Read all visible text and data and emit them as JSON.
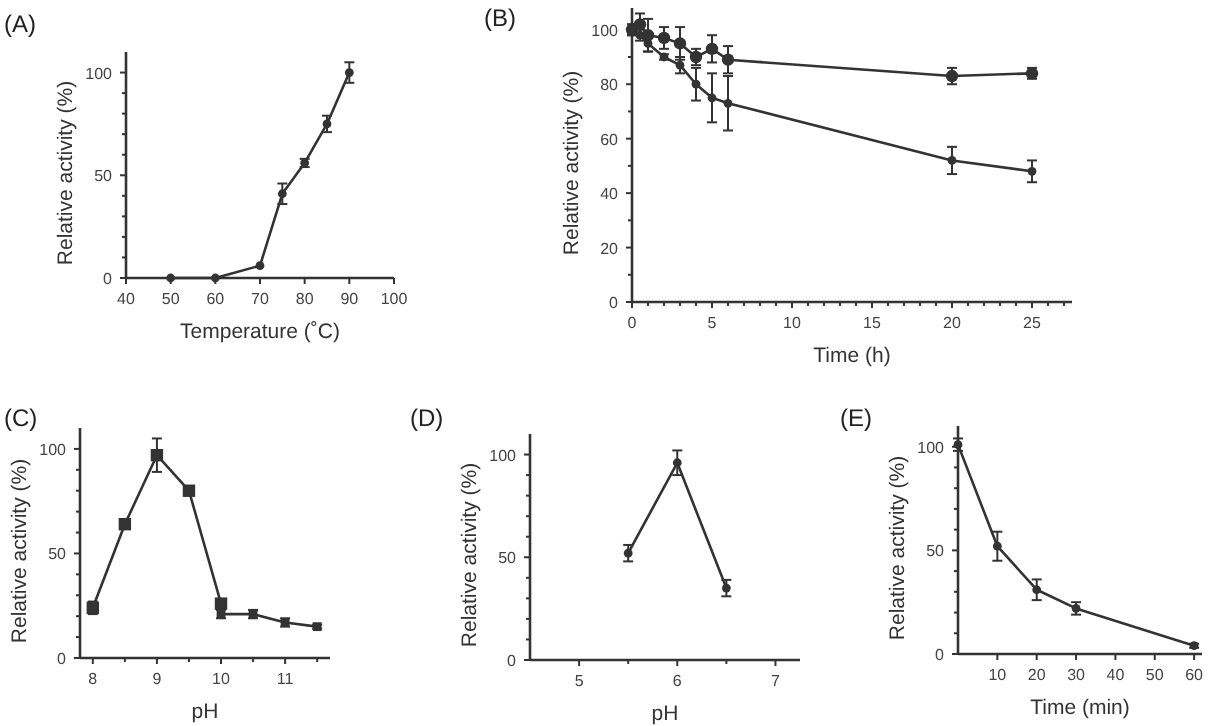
{
  "chart_data": [
    {
      "type": "line",
      "title": "(A)",
      "xlabel": "Temperature (˚C)",
      "ylabel": "Relative activity (%)",
      "marker": "circle",
      "line_style": "solid",
      "grid": false,
      "xlim": [
        40,
        100
      ],
      "xticks": [
        40,
        50,
        60,
        70,
        80,
        90,
        100
      ],
      "ylim": [
        0,
        110
      ],
      "yticks": [
        0,
        {
          "value": 10,
          "label": null
        },
        {
          "value": 20,
          "label": null
        },
        {
          "value": 30,
          "label": null
        },
        {
          "value": 40,
          "label": null
        },
        50,
        {
          "value": 60,
          "label": null
        },
        {
          "value": 70,
          "label": null
        },
        {
          "value": 80,
          "label": null
        },
        {
          "value": 90,
          "label": null
        },
        100
      ],
      "series": [
        {
          "color": "#333333",
          "x": [
            50,
            60,
            70,
            75,
            80,
            85,
            90
          ],
          "values": [
            0,
            0,
            6,
            41,
            56,
            75,
            100
          ],
          "errors": [
            null,
            null,
            null,
            5,
            2,
            4,
            5
          ]
        }
      ]
    },
    {
      "type": "line",
      "title": "(B)",
      "xlabel": "Time (h)",
      "ylabel": "Relative activity (%)",
      "marker": "circle",
      "line_style": "solid",
      "grid": false,
      "xlim": [
        0,
        27.5
      ],
      "xticks": [
        0,
        {
          "value": 1,
          "label": null
        },
        {
          "value": 2,
          "label": null
        },
        {
          "value": 3,
          "label": null
        },
        {
          "value": 4,
          "label": null
        },
        5,
        {
          "value": 6,
          "label": null
        },
        {
          "value": 7,
          "label": null
        },
        {
          "value": 8,
          "label": null
        },
        {
          "value": 9,
          "label": null
        },
        10,
        {
          "value": 11,
          "label": null
        },
        {
          "value": 12,
          "label": null
        },
        {
          "value": 13,
          "label": null
        },
        {
          "value": 14,
          "label": null
        },
        15,
        {
          "value": 16,
          "label": null
        },
        {
          "value": 17,
          "label": null
        },
        {
          "value": 18,
          "label": null
        },
        {
          "value": 19,
          "label": null
        },
        20,
        {
          "value": 21,
          "label": null
        },
        {
          "value": 22,
          "label": null
        },
        {
          "value": 23,
          "label": null
        },
        {
          "value": 24,
          "label": null
        },
        25,
        {
          "value": 26,
          "label": null
        },
        {
          "value": 27,
          "label": null
        }
      ],
      "ylim": [
        0,
        108
      ],
      "yticks": [
        0,
        {
          "value": 10,
          "label": null
        },
        20,
        {
          "value": 30,
          "label": null
        },
        40,
        {
          "value": 50,
          "label": null
        },
        60,
        {
          "value": 70,
          "label": null
        },
        80,
        {
          "value": 90,
          "label": null
        },
        100
      ],
      "series": [
        {
          "color": "#333333",
          "x": [
            0,
            0.5,
            1,
            2,
            3,
            4,
            5,
            6,
            20,
            25
          ],
          "values": [
            100,
            102,
            98,
            97,
            95,
            90,
            93,
            89,
            83,
            84
          ],
          "errors": [
            2,
            4,
            6,
            4,
            6,
            3,
            5,
            5,
            3,
            2
          ]
        },
        {
          "color": "#333333",
          "x": [
            0,
            0.5,
            1,
            2,
            3,
            4,
            5,
            6,
            20,
            25
          ],
          "values": [
            100,
            98,
            95,
            90,
            87,
            80,
            75,
            73,
            52,
            48
          ],
          "errors": [
            2,
            2,
            3,
            1,
            3,
            6,
            9,
            10,
            5,
            4
          ]
        }
      ]
    },
    {
      "type": "line",
      "title": "(C)",
      "xlabel": "pH",
      "ylabel": "Relative activity (%)",
      "marker": "square",
      "line_style": "solid",
      "grid": false,
      "xlim": [
        7.8,
        11.7
      ],
      "xticks": [
        8,
        {
          "value": 8.5,
          "label": null
        },
        9,
        {
          "value": 9.5,
          "label": null
        },
        10,
        {
          "value": 10.5,
          "label": null
        },
        11,
        {
          "value": 11.5,
          "label": null
        }
      ],
      "ylim": [
        0,
        110
      ],
      "yticks": [
        0,
        {
          "value": 10,
          "label": null
        },
        {
          "value": 20,
          "label": null
        },
        {
          "value": 30,
          "label": null
        },
        {
          "value": 40,
          "label": null
        },
        50,
        {
          "value": 60,
          "label": null
        },
        {
          "value": 70,
          "label": null
        },
        {
          "value": 80,
          "label": null
        },
        {
          "value": 90,
          "label": null
        },
        100
      ],
      "series": [
        {
          "color": "#333333",
          "x": [
            8,
            8.5,
            9,
            9.5,
            10
          ],
          "values": [
            24,
            64,
            97,
            80,
            26
          ],
          "errors": [
            3,
            2,
            8,
            2,
            2
          ]
        },
        {
          "color": "#333333",
          "x": [
            10,
            10.5,
            11,
            11.5
          ],
          "values": [
            21,
            21,
            17,
            15
          ],
          "errors": [
            2,
            2,
            2,
            1
          ]
        }
      ]
    },
    {
      "type": "line",
      "title": "(D)",
      "xlabel": "pH",
      "ylabel": "Relative activity (%)",
      "marker": "circle",
      "line_style": "solid",
      "grid": false,
      "xlim": [
        4.5,
        7.25
      ],
      "xticks": [
        5,
        {
          "value": 5.5,
          "label": null
        },
        6,
        {
          "value": 6.5,
          "label": null
        },
        7
      ],
      "ylim": [
        0,
        110
      ],
      "yticks": [
        0,
        {
          "value": 10,
          "label": null
        },
        {
          "value": 20,
          "label": null
        },
        {
          "value": 30,
          "label": null
        },
        {
          "value": 40,
          "label": null
        },
        50,
        {
          "value": 60,
          "label": null
        },
        {
          "value": 70,
          "label": null
        },
        {
          "value": 80,
          "label": null
        },
        {
          "value": 90,
          "label": null
        },
        100
      ],
      "series": [
        {
          "color": "#333333",
          "x": [
            5.5,
            6,
            6.5
          ],
          "values": [
            52,
            96,
            35
          ],
          "errors": [
            4,
            6,
            4
          ]
        }
      ]
    },
    {
      "type": "line",
      "title": "(E)",
      "xlabel": "Time (min)",
      "ylabel": "Relative activity (%)",
      "marker": "circle",
      "line_style": "solid",
      "grid": false,
      "xlim": [
        0,
        62
      ],
      "xticks": [
        10,
        20,
        30,
        40,
        50,
        60
      ],
      "ylim": [
        0,
        110
      ],
      "yticks": [
        0,
        {
          "value": 10,
          "label": null
        },
        {
          "value": 20,
          "label": null
        },
        {
          "value": 30,
          "label": null
        },
        {
          "value": 40,
          "label": null
        },
        50,
        {
          "value": 60,
          "label": null
        },
        {
          "value": 70,
          "label": null
        },
        {
          "value": 80,
          "label": null
        },
        {
          "value": 90,
          "label": null
        },
        100
      ],
      "series": [
        {
          "color": "#333333",
          "x": [
            0,
            10,
            20,
            30,
            60
          ],
          "values": [
            101,
            52,
            31,
            22,
            4
          ],
          "errors": [
            3,
            7,
            5,
            3,
            1
          ]
        }
      ]
    }
  ]
}
